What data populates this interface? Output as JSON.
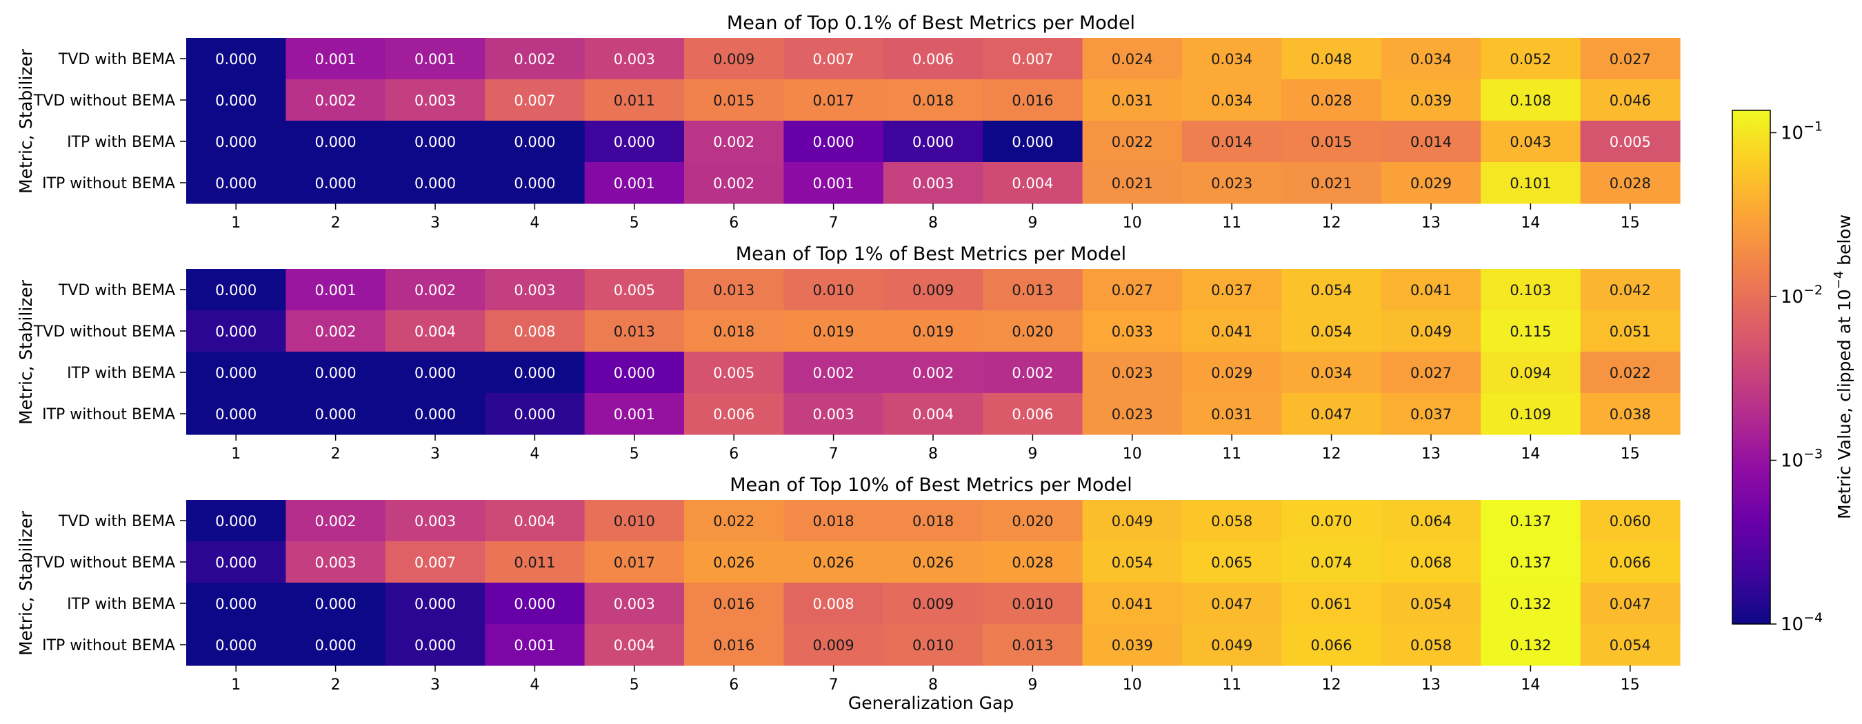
{
  "figure": {
    "xlabel": "Generalization Gap",
    "ylabel": "Metric, Stabilizer"
  },
  "colorbar": {
    "label": "Metric Value, clipped at 10",
    "label_exp": "−4",
    "label_tail": " below",
    "ticks": [
      {
        "base": "10",
        "exp": "−1",
        "value": 0.1
      },
      {
        "base": "10",
        "exp": "−2",
        "value": 0.01
      },
      {
        "base": "10",
        "exp": "−3",
        "value": 0.001
      },
      {
        "base": "10",
        "exp": "−4",
        "value": 0.0001
      }
    ],
    "scale": "log",
    "range": [
      0.0001,
      0.137
    ],
    "colormap": "plasma"
  },
  "chart_data": [
    {
      "type": "heatmap",
      "title": "Mean of Top 0.1% of Best Metrics per Model",
      "xlabel": "",
      "ylabel": "Metric, Stabilizer",
      "categories": [
        "1",
        "2",
        "3",
        "4",
        "5",
        "6",
        "7",
        "8",
        "9",
        "10",
        "11",
        "12",
        "13",
        "14",
        "15"
      ],
      "rows": [
        "TVD with BEMA",
        "TVD without BEMA",
        "ITP with BEMA",
        "ITP without BEMA"
      ],
      "values": [
        [
          0.0001,
          0.0011,
          0.0013,
          0.0024,
          0.0032,
          0.0091,
          0.0072,
          0.0062,
          0.0071,
          0.024,
          0.034,
          0.048,
          0.034,
          0.052,
          0.027
        ],
        [
          0.0001,
          0.0022,
          0.003,
          0.0072,
          0.011,
          0.015,
          0.017,
          0.018,
          0.016,
          0.031,
          0.034,
          0.028,
          0.039,
          0.108,
          0.046
        ],
        [
          0.0001,
          0.0001,
          0.0001,
          0.0001,
          0.0002,
          0.0023,
          0.0004,
          0.0002,
          0.0001,
          0.022,
          0.014,
          0.015,
          0.014,
          0.043,
          0.0052
        ],
        [
          0.0001,
          0.0001,
          0.0001,
          0.0001,
          0.0007,
          0.0022,
          0.0008,
          0.0031,
          0.0041,
          0.021,
          0.023,
          0.021,
          0.029,
          0.101,
          0.028
        ]
      ],
      "labels": [
        [
          "0.000",
          "0.001",
          "0.001",
          "0.002",
          "0.003",
          "0.009",
          "0.007",
          "0.006",
          "0.007",
          "0.024",
          "0.034",
          "0.048",
          "0.034",
          "0.052",
          "0.027"
        ],
        [
          "0.000",
          "0.002",
          "0.003",
          "0.007",
          "0.011",
          "0.015",
          "0.017",
          "0.018",
          "0.016",
          "0.031",
          "0.034",
          "0.028",
          "0.039",
          "0.108",
          "0.046"
        ],
        [
          "0.000",
          "0.000",
          "0.000",
          "0.000",
          "0.000",
          "0.002",
          "0.000",
          "0.000",
          "0.000",
          "0.022",
          "0.014",
          "0.015",
          "0.014",
          "0.043",
          "0.005"
        ],
        [
          "0.000",
          "0.000",
          "0.000",
          "0.000",
          "0.001",
          "0.002",
          "0.001",
          "0.003",
          "0.004",
          "0.021",
          "0.023",
          "0.021",
          "0.029",
          "0.101",
          "0.028"
        ]
      ]
    },
    {
      "type": "heatmap",
      "title": "Mean of Top 1% of Best Metrics per Model",
      "xlabel": "",
      "ylabel": "Metric, Stabilizer",
      "categories": [
        "1",
        "2",
        "3",
        "4",
        "5",
        "6",
        "7",
        "8",
        "9",
        "10",
        "11",
        "12",
        "13",
        "14",
        "15"
      ],
      "rows": [
        "TVD with BEMA",
        "TVD without BEMA",
        "ITP with BEMA",
        "ITP without BEMA"
      ],
      "values": [
        [
          0.0001,
          0.0011,
          0.002,
          0.003,
          0.005,
          0.013,
          0.01,
          0.009,
          0.013,
          0.027,
          0.037,
          0.054,
          0.041,
          0.103,
          0.042
        ],
        [
          0.00015,
          0.0021,
          0.004,
          0.008,
          0.013,
          0.018,
          0.019,
          0.019,
          0.02,
          0.033,
          0.041,
          0.054,
          0.049,
          0.115,
          0.051
        ],
        [
          0.0001,
          0.0001,
          0.0001,
          0.0001,
          0.0004,
          0.005,
          0.0021,
          0.0021,
          0.002,
          0.023,
          0.029,
          0.034,
          0.027,
          0.094,
          0.022
        ],
        [
          0.0001,
          0.0001,
          0.0001,
          0.00015,
          0.001,
          0.006,
          0.003,
          0.004,
          0.006,
          0.023,
          0.031,
          0.047,
          0.037,
          0.109,
          0.038
        ]
      ],
      "labels": [
        [
          "0.000",
          "0.001",
          "0.002",
          "0.003",
          "0.005",
          "0.013",
          "0.010",
          "0.009",
          "0.013",
          "0.027",
          "0.037",
          "0.054",
          "0.041",
          "0.103",
          "0.042"
        ],
        [
          "0.000",
          "0.002",
          "0.004",
          "0.008",
          "0.013",
          "0.018",
          "0.019",
          "0.019",
          "0.020",
          "0.033",
          "0.041",
          "0.054",
          "0.049",
          "0.115",
          "0.051"
        ],
        [
          "0.000",
          "0.000",
          "0.000",
          "0.000",
          "0.000",
          "0.005",
          "0.002",
          "0.002",
          "0.002",
          "0.023",
          "0.029",
          "0.034",
          "0.027",
          "0.094",
          "0.022"
        ],
        [
          "0.000",
          "0.000",
          "0.000",
          "0.000",
          "0.001",
          "0.006",
          "0.003",
          "0.004",
          "0.006",
          "0.023",
          "0.031",
          "0.047",
          "0.037",
          "0.109",
          "0.038"
        ]
      ]
    },
    {
      "type": "heatmap",
      "title": "Mean of Top 10% of Best Metrics per Model",
      "xlabel": "Generalization Gap",
      "ylabel": "Metric, Stabilizer",
      "categories": [
        "1",
        "2",
        "3",
        "4",
        "5",
        "6",
        "7",
        "8",
        "9",
        "10",
        "11",
        "12",
        "13",
        "14",
        "15"
      ],
      "rows": [
        "TVD with BEMA",
        "TVD without BEMA",
        "ITP with BEMA",
        "ITP without BEMA"
      ],
      "values": [
        [
          0.0001,
          0.002,
          0.003,
          0.004,
          0.01,
          0.022,
          0.018,
          0.018,
          0.02,
          0.049,
          0.058,
          0.07,
          0.064,
          0.137,
          0.06
        ],
        [
          0.00015,
          0.003,
          0.007,
          0.011,
          0.017,
          0.026,
          0.026,
          0.026,
          0.028,
          0.054,
          0.065,
          0.074,
          0.068,
          0.137,
          0.066
        ],
        [
          0.0001,
          0.0001,
          0.00015,
          0.0004,
          0.003,
          0.016,
          0.008,
          0.009,
          0.01,
          0.041,
          0.047,
          0.061,
          0.054,
          0.132,
          0.047
        ],
        [
          0.0001,
          0.0001,
          0.00015,
          0.0006,
          0.004,
          0.016,
          0.009,
          0.01,
          0.013,
          0.039,
          0.049,
          0.066,
          0.058,
          0.132,
          0.054
        ]
      ],
      "labels": [
        [
          "0.000",
          "0.002",
          "0.003",
          "0.004",
          "0.010",
          "0.022",
          "0.018",
          "0.018",
          "0.020",
          "0.049",
          "0.058",
          "0.070",
          "0.064",
          "0.137",
          "0.060"
        ],
        [
          "0.000",
          "0.003",
          "0.007",
          "0.011",
          "0.017",
          "0.026",
          "0.026",
          "0.026",
          "0.028",
          "0.054",
          "0.065",
          "0.074",
          "0.068",
          "0.137",
          "0.066"
        ],
        [
          "0.000",
          "0.000",
          "0.000",
          "0.000",
          "0.003",
          "0.016",
          "0.008",
          "0.009",
          "0.010",
          "0.041",
          "0.047",
          "0.061",
          "0.054",
          "0.132",
          "0.047"
        ],
        [
          "0.000",
          "0.000",
          "0.000",
          "0.001",
          "0.004",
          "0.016",
          "0.009",
          "0.010",
          "0.013",
          "0.039",
          "0.049",
          "0.066",
          "0.058",
          "0.132",
          "0.054"
        ]
      ]
    }
  ]
}
